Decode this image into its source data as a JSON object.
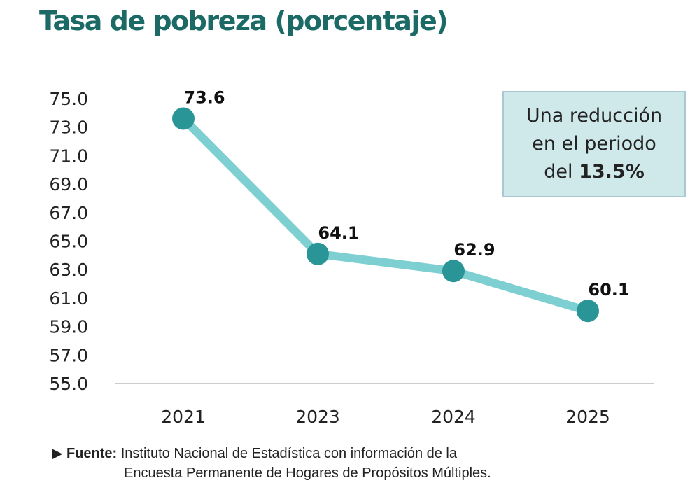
{
  "chart_data": {
    "type": "line",
    "title": "Tasa de pobreza (porcentaje)",
    "categories": [
      "2021",
      "2023",
      "2024",
      "2025"
    ],
    "values": [
      73.6,
      64.1,
      62.9,
      60.1
    ],
    "data_labels": [
      "73.6",
      "64.1",
      "62.9",
      "60.1"
    ],
    "ylim": [
      55.0,
      75.0
    ],
    "yticks": [
      "55.0",
      "57.0",
      "59.0",
      "61.0",
      "63.0",
      "65.0",
      "67.0",
      "69.0",
      "71.0",
      "73.0",
      "75.0"
    ],
    "xlabel": "",
    "ylabel": "",
    "grid": false,
    "colors": {
      "line": "#7ecfd1",
      "marker": "#2a9597",
      "title": "#1b6a66"
    }
  },
  "annotation": {
    "line1": "Una reducción",
    "line2": "en el periodo",
    "prefix": "del",
    "value": "13.5%"
  },
  "source": {
    "label": "Fuente:",
    "line1": "Instituto Nacional de Estadística con información de la",
    "line2": "Encuesta Permanente de Hogares de Propósitos Múltiples."
  }
}
